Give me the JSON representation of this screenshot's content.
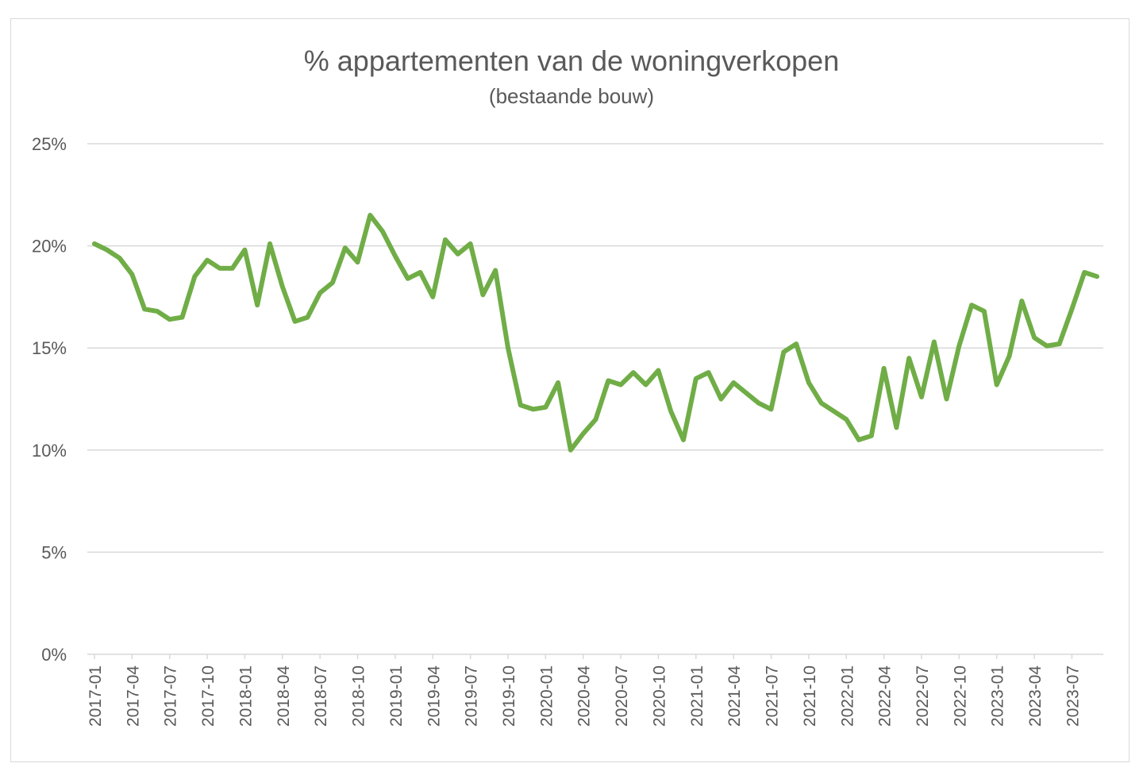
{
  "chart_data": {
    "type": "line",
    "title": "% appartementen van de woningverkopen",
    "subtitle": "(bestaande bouw)",
    "xlabel": "",
    "ylabel": "",
    "ylim": [
      0,
      0.25
    ],
    "y_ticks": [
      "0%",
      "5%",
      "10%",
      "15%",
      "20%",
      "25%"
    ],
    "y_tick_values": [
      0,
      0.05,
      0.1,
      0.15,
      0.2,
      0.25
    ],
    "x_tick_labels": [
      "2017-01",
      "2017-04",
      "2017-07",
      "2017-10",
      "2018-01",
      "2018-04",
      "2018-07",
      "2018-10",
      "2019-01",
      "2019-04",
      "2019-07",
      "2019-10",
      "2020-01",
      "2020-04",
      "2020-07",
      "2020-10",
      "2021-01",
      "2021-04",
      "2021-07",
      "2021-10",
      "2022-01",
      "2022-04",
      "2022-07",
      "2022-10",
      "2023-01",
      "2023-04",
      "2023-07"
    ],
    "grid": true,
    "legend": "none",
    "series": [
      {
        "color": "#70ad47",
        "x": [
          "2017-01",
          "2017-02",
          "2017-03",
          "2017-04",
          "2017-05",
          "2017-06",
          "2017-07",
          "2017-08",
          "2017-09",
          "2017-10",
          "2017-11",
          "2017-12",
          "2018-01",
          "2018-02",
          "2018-03",
          "2018-04",
          "2018-05",
          "2018-06",
          "2018-07",
          "2018-08",
          "2018-09",
          "2018-10",
          "2018-11",
          "2018-12",
          "2019-01",
          "2019-02",
          "2019-03",
          "2019-04",
          "2019-05",
          "2019-06",
          "2019-07",
          "2019-08",
          "2019-09",
          "2019-10",
          "2019-11",
          "2019-12",
          "2020-01",
          "2020-02",
          "2020-03",
          "2020-04",
          "2020-05",
          "2020-06",
          "2020-07",
          "2020-08",
          "2020-09",
          "2020-10",
          "2020-11",
          "2020-12",
          "2021-01",
          "2021-02",
          "2021-03",
          "2021-04",
          "2021-05",
          "2021-06",
          "2021-07",
          "2021-08",
          "2021-09",
          "2021-10",
          "2021-11",
          "2021-12",
          "2022-01",
          "2022-02",
          "2022-03",
          "2022-04",
          "2022-05",
          "2022-06",
          "2022-07",
          "2022-08",
          "2022-09",
          "2022-10",
          "2022-11",
          "2022-12",
          "2023-01",
          "2023-02",
          "2023-03",
          "2023-04",
          "2023-05",
          "2023-06",
          "2023-07",
          "2023-08",
          "2023-09"
        ],
        "values": [
          0.201,
          0.198,
          0.194,
          0.186,
          0.169,
          0.168,
          0.164,
          0.165,
          0.185,
          0.193,
          0.189,
          0.189,
          0.198,
          0.171,
          0.201,
          0.18,
          0.163,
          0.165,
          0.177,
          0.182,
          0.199,
          0.192,
          0.215,
          0.207,
          0.195,
          0.184,
          0.187,
          0.175,
          0.203,
          0.196,
          0.201,
          0.176,
          0.188,
          0.15,
          0.122,
          0.12,
          0.121,
          0.133,
          0.1,
          0.108,
          0.115,
          0.134,
          0.132,
          0.138,
          0.132,
          0.139,
          0.119,
          0.105,
          0.135,
          0.138,
          0.125,
          0.133,
          0.128,
          0.123,
          0.12,
          0.148,
          0.152,
          0.133,
          0.123,
          0.119,
          0.115,
          0.105,
          0.107,
          0.14,
          0.111,
          0.145,
          0.126,
          0.153,
          0.125,
          0.151,
          0.171,
          0.168,
          0.132,
          0.146,
          0.173,
          0.155,
          0.151,
          0.152,
          0.169,
          0.187,
          0.185
        ]
      }
    ]
  }
}
